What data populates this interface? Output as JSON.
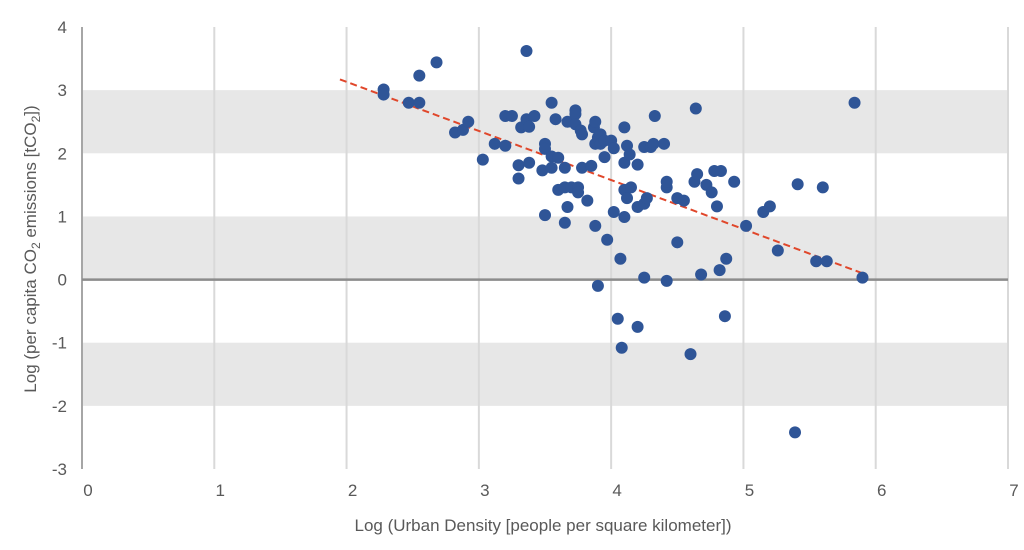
{
  "chart_data": {
    "type": "scatter",
    "xlabel": "Log (Urban Density [people per square kilometer])",
    "ylabel": {
      "prefix": "Log (per capita CO",
      "sub1": "2",
      "middle": " emissions [tCO",
      "sub2": "2",
      "suffix": "])"
    },
    "xlim": [
      0,
      7
    ],
    "ylim": [
      -3,
      4
    ],
    "x_ticks": [
      "0",
      "1",
      "2",
      "3",
      "4",
      "5",
      "6",
      "7"
    ],
    "y_ticks": [
      "-3",
      "-2",
      "-1",
      "0",
      "1",
      "2",
      "3",
      "4"
    ],
    "grid": true,
    "band_color": "#e7e7e7",
    "point_color": "#2f5597",
    "trend_color": "#e0472b",
    "trendline": {
      "style": "dashed",
      "from": [
        1.95,
        3.17
      ],
      "to": [
        5.9,
        0.1
      ]
    },
    "points": [
      [
        2.28,
        3.01
      ],
      [
        2.28,
        2.93
      ],
      [
        2.47,
        2.8
      ],
      [
        2.55,
        2.8
      ],
      [
        2.55,
        3.23
      ],
      [
        2.68,
        3.44
      ],
      [
        2.82,
        2.33
      ],
      [
        2.88,
        2.37
      ],
      [
        2.92,
        2.5
      ],
      [
        3.03,
        1.9
      ],
      [
        3.12,
        2.15
      ],
      [
        3.2,
        2.12
      ],
      [
        3.2,
        2.59
      ],
      [
        3.25,
        2.59
      ],
      [
        3.3,
        1.81
      ],
      [
        3.3,
        1.6
      ],
      [
        3.32,
        2.41
      ],
      [
        3.36,
        3.62
      ],
      [
        3.36,
        2.54
      ],
      [
        3.38,
        2.42
      ],
      [
        3.38,
        1.85
      ],
      [
        3.42,
        2.59
      ],
      [
        3.48,
        1.73
      ],
      [
        3.5,
        2.15
      ],
      [
        3.5,
        2.07
      ],
      [
        3.5,
        1.02
      ],
      [
        3.55,
        2.8
      ],
      [
        3.55,
        1.95
      ],
      [
        3.55,
        1.77
      ],
      [
        3.58,
        2.54
      ],
      [
        3.6,
        1.93
      ],
      [
        3.6,
        1.42
      ],
      [
        3.65,
        1.77
      ],
      [
        3.65,
        1.46
      ],
      [
        3.65,
        0.9
      ],
      [
        3.67,
        2.5
      ],
      [
        3.67,
        1.15
      ],
      [
        3.7,
        1.46
      ],
      [
        3.73,
        2.68
      ],
      [
        3.73,
        2.62
      ],
      [
        3.73,
        2.46
      ],
      [
        3.75,
        1.46
      ],
      [
        3.75,
        1.38
      ],
      [
        3.77,
        2.36
      ],
      [
        3.78,
        2.3
      ],
      [
        3.78,
        1.77
      ],
      [
        3.82,
        1.25
      ],
      [
        3.85,
        1.8
      ],
      [
        3.87,
        2.41
      ],
      [
        3.88,
        2.5
      ],
      [
        3.88,
        2.15
      ],
      [
        3.88,
        0.85
      ],
      [
        3.9,
        2.25
      ],
      [
        3.9,
        -0.1
      ],
      [
        3.92,
        2.3
      ],
      [
        3.92,
        2.15
      ],
      [
        3.95,
        2.2
      ],
      [
        3.95,
        1.94
      ],
      [
        3.97,
        0.63
      ],
      [
        4.0,
        2.2
      ],
      [
        4.02,
        2.08
      ],
      [
        4.02,
        1.07
      ],
      [
        4.05,
        -0.62
      ],
      [
        4.07,
        0.33
      ],
      [
        4.08,
        -1.08
      ],
      [
        4.1,
        2.41
      ],
      [
        4.1,
        1.85
      ],
      [
        4.1,
        1.42
      ],
      [
        4.1,
        0.99
      ],
      [
        4.12,
        2.12
      ],
      [
        4.12,
        1.29
      ],
      [
        4.14,
        1.98
      ],
      [
        4.15,
        1.46
      ],
      [
        4.2,
        1.15
      ],
      [
        4.2,
        1.82
      ],
      [
        4.2,
        -0.75
      ],
      [
        4.25,
        2.1
      ],
      [
        4.25,
        1.2
      ],
      [
        4.25,
        0.03
      ],
      [
        4.27,
        1.29
      ],
      [
        4.3,
        2.1
      ],
      [
        4.32,
        2.15
      ],
      [
        4.33,
        2.59
      ],
      [
        4.4,
        2.15
      ],
      [
        4.42,
        1.46
      ],
      [
        4.42,
        1.55
      ],
      [
        4.42,
        -0.02
      ],
      [
        4.5,
        1.29
      ],
      [
        4.5,
        0.59
      ],
      [
        4.55,
        1.25
      ],
      [
        4.6,
        -1.18
      ],
      [
        4.63,
        1.55
      ],
      [
        4.64,
        2.71
      ],
      [
        4.65,
        1.67
      ],
      [
        4.68,
        0.08
      ],
      [
        4.72,
        1.5
      ],
      [
        4.76,
        1.38
      ],
      [
        4.78,
        1.72
      ],
      [
        4.8,
        1.16
      ],
      [
        4.82,
        0.15
      ],
      [
        4.83,
        1.72
      ],
      [
        4.86,
        -0.58
      ],
      [
        4.87,
        0.33
      ],
      [
        4.93,
        1.55
      ],
      [
        5.02,
        0.85
      ],
      [
        5.15,
        1.07
      ],
      [
        5.2,
        1.16
      ],
      [
        5.26,
        0.46
      ],
      [
        5.39,
        -2.42
      ],
      [
        5.41,
        1.51
      ],
      [
        5.55,
        0.29
      ],
      [
        5.6,
        1.46
      ],
      [
        5.63,
        0.29
      ],
      [
        5.84,
        2.8
      ],
      [
        5.9,
        0.03
      ]
    ]
  }
}
